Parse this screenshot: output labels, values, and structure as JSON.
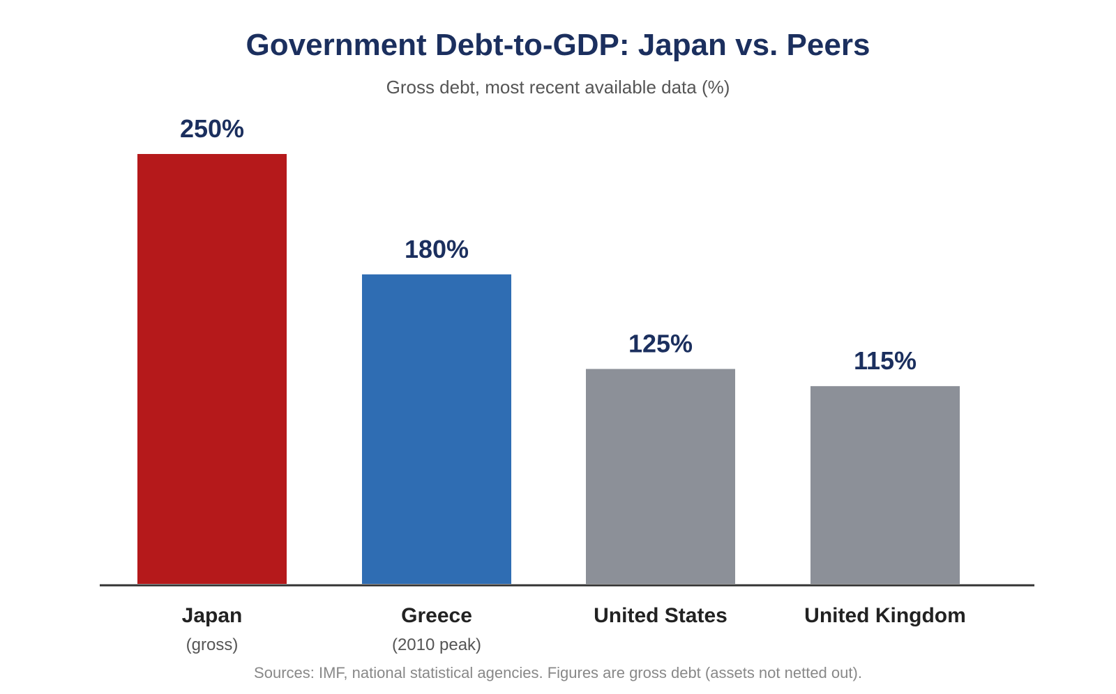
{
  "chart_data": {
    "type": "bar",
    "title": "Government Debt-to-GDP: Japan vs. Peers",
    "subtitle": "Gross debt, most recent available data (%)",
    "categories": [
      "Japan",
      "Greece",
      "United States",
      "United Kingdom"
    ],
    "category_notes": [
      "(gross)",
      "(2010 peak)",
      "",
      ""
    ],
    "values": [
      250,
      180,
      125,
      115
    ],
    "data_labels": [
      "250%",
      "180%",
      "125%",
      "115%"
    ],
    "bar_colors": [
      "#b5191b",
      "#2f6db3",
      "#8c9098",
      "#8c9098"
    ],
    "ylim": [
      0,
      250
    ],
    "grid": false,
    "xlabel": "",
    "ylabel": "",
    "source": "Sources: IMF, national statistical agencies. Figures are gross debt (assets not netted out)."
  },
  "colors": {
    "title": "#1b2f5e",
    "data_label": "#1b2f5e",
    "category_label": "#222222",
    "note": "#555555",
    "axis": "#333333"
  }
}
